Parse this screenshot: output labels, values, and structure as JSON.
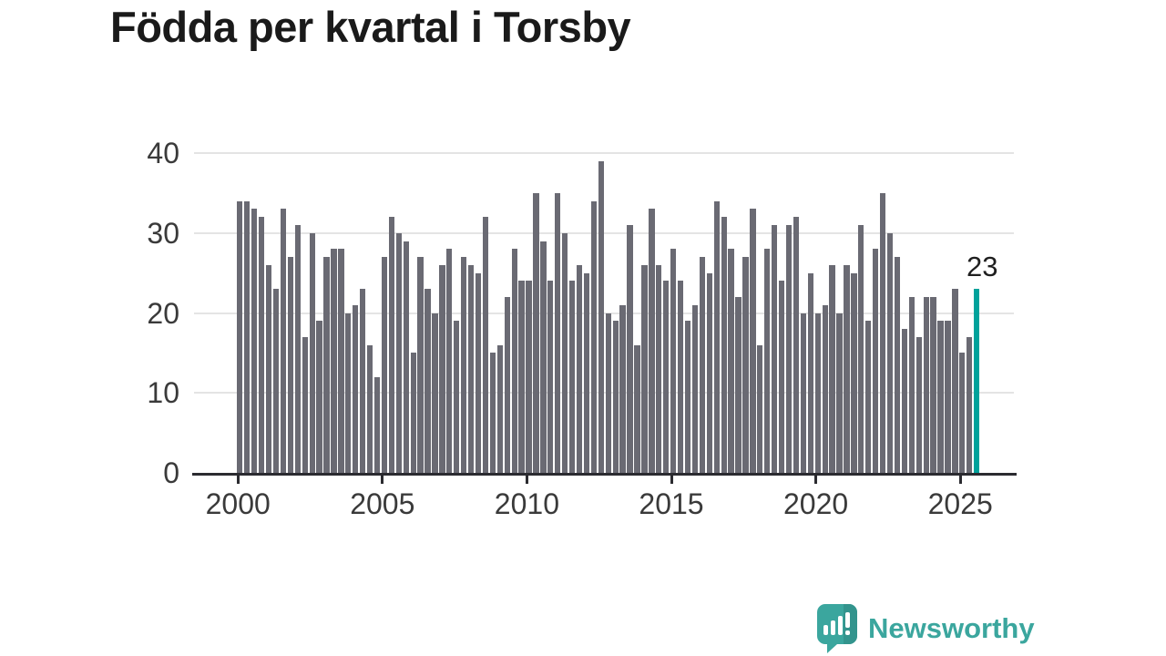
{
  "title": "Födda per kvartal i Torsby",
  "logo": {
    "text": "Newsworthy"
  },
  "colors": {
    "title": "#1a1a1a",
    "bar": "#6a6a73",
    "highlight": "#00a29b",
    "grid": "#e4e4e4",
    "axis": "#2b2b30",
    "ticklabel": "#3a3a3a",
    "logo": "#3ba69e"
  },
  "chart_data": {
    "type": "bar",
    "title": "Födda per kvartal i Torsby",
    "xlabel": "",
    "ylabel": "",
    "ylim": [
      0,
      40
    ],
    "yticks": [
      0,
      10,
      20,
      30,
      40
    ],
    "xticks": [
      "2000",
      "2005",
      "2010",
      "2015",
      "2020",
      "2025"
    ],
    "grid": true,
    "legend": false,
    "unit": "births per quarter",
    "highlight_label": "23",
    "highlight_value": 23,
    "years": [
      {
        "year": 2000,
        "values": [
          34,
          34,
          33,
          32
        ]
      },
      {
        "year": 2001,
        "values": [
          26,
          23,
          33,
          27
        ]
      },
      {
        "year": 2002,
        "values": [
          31,
          17,
          30,
          19
        ]
      },
      {
        "year": 2003,
        "values": [
          27,
          28,
          28,
          20
        ]
      },
      {
        "year": 2004,
        "values": [
          21,
          23,
          16,
          12
        ]
      },
      {
        "year": 2005,
        "values": [
          27,
          32,
          30,
          29
        ]
      },
      {
        "year": 2006,
        "values": [
          15,
          27,
          23,
          20
        ]
      },
      {
        "year": 2007,
        "values": [
          26,
          28,
          19,
          27
        ]
      },
      {
        "year": 2008,
        "values": [
          26,
          25,
          32,
          15
        ]
      },
      {
        "year": 2009,
        "values": [
          16,
          22,
          28,
          24
        ]
      },
      {
        "year": 2010,
        "values": [
          24,
          35,
          29,
          24
        ]
      },
      {
        "year": 2011,
        "values": [
          35,
          30,
          24,
          26
        ]
      },
      {
        "year": 2012,
        "values": [
          25,
          34,
          39,
          20
        ]
      },
      {
        "year": 2013,
        "values": [
          19,
          21,
          31,
          16
        ]
      },
      {
        "year": 2014,
        "values": [
          26,
          33,
          26,
          24
        ]
      },
      {
        "year": 2015,
        "values": [
          28,
          24,
          19,
          21
        ]
      },
      {
        "year": 2016,
        "values": [
          27,
          25,
          34,
          32
        ]
      },
      {
        "year": 2017,
        "values": [
          28,
          22,
          27,
          33
        ]
      },
      {
        "year": 2018,
        "values": [
          16,
          28,
          31,
          24
        ]
      },
      {
        "year": 2019,
        "values": [
          31,
          32,
          20,
          25
        ]
      },
      {
        "year": 2020,
        "values": [
          20,
          21,
          26,
          20
        ]
      },
      {
        "year": 2021,
        "values": [
          26,
          25,
          31,
          19
        ]
      },
      {
        "year": 2022,
        "values": [
          28,
          35,
          30,
          27
        ]
      },
      {
        "year": 2023,
        "values": [
          18,
          22,
          17,
          22
        ]
      },
      {
        "year": 2024,
        "values": [
          22,
          19,
          19,
          23
        ]
      },
      {
        "year": 2025,
        "values": [
          15,
          17,
          23
        ]
      }
    ]
  }
}
